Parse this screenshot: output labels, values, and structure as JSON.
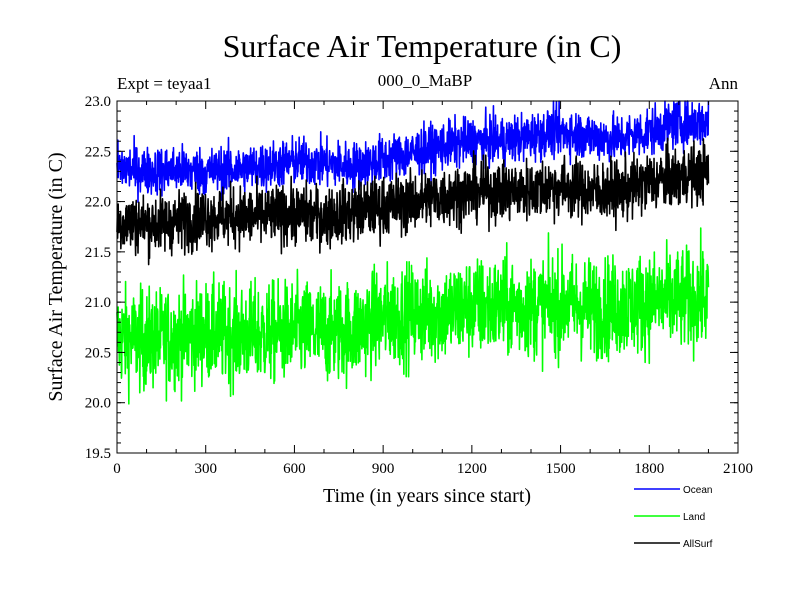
{
  "chart_data": {
    "type": "line",
    "title": "Surface Air Temperature (in C)",
    "subtitle_left": "Expt = teyaa1",
    "subtitle_center": "000_0_MaBP",
    "subtitle_right": "Ann",
    "xlabel": "Time (in years since start)",
    "ylabel": "Surface Air Temperature (in C)",
    "xlim": [
      0,
      2100
    ],
    "ylim": [
      19.5,
      23.0
    ],
    "xticks": [
      0,
      300,
      600,
      900,
      1200,
      1500,
      1800,
      2100
    ],
    "xtick_labels": [
      "0",
      "300",
      "600",
      "900",
      "1200",
      "1500",
      "1800",
      "2100"
    ],
    "yticks": [
      19.5,
      20.0,
      20.5,
      21.0,
      21.5,
      22.0,
      22.5,
      23.0
    ],
    "ytick_labels": [
      "19.5",
      "20.0",
      "20.5",
      "21.0",
      "21.5",
      "22.0",
      "22.5",
      "23.0"
    ],
    "grid": false,
    "legend_position": "below-right",
    "series": [
      {
        "name": "Ocean",
        "color": "#0000ff",
        "x": [
          0,
          100,
          200,
          300,
          400,
          500,
          600,
          700,
          800,
          900,
          1000,
          1100,
          1200,
          1300,
          1400,
          1500,
          1600,
          1700,
          1800,
          1900,
          2000
        ],
        "values": [
          22.35,
          22.3,
          22.32,
          22.3,
          22.32,
          22.35,
          22.4,
          22.38,
          22.35,
          22.42,
          22.48,
          22.55,
          22.6,
          22.6,
          22.65,
          22.7,
          22.65,
          22.62,
          22.7,
          22.78,
          22.8
        ],
        "noise_amplitude": 0.12
      },
      {
        "name": "Land",
        "color": "#00ff00",
        "x": [
          0,
          100,
          200,
          300,
          400,
          500,
          600,
          700,
          800,
          900,
          1000,
          1100,
          1200,
          1300,
          1400,
          1500,
          1600,
          1700,
          1800,
          1900,
          2000
        ],
        "values": [
          20.65,
          20.62,
          20.65,
          20.7,
          20.68,
          20.68,
          20.72,
          20.7,
          20.72,
          20.85,
          20.88,
          20.9,
          20.95,
          20.95,
          20.95,
          20.98,
          20.95,
          20.95,
          21.0,
          21.02,
          21.05
        ],
        "noise_amplitude": 0.25
      },
      {
        "name": "AllSurf",
        "color": "#000000",
        "x": [
          0,
          100,
          200,
          300,
          400,
          500,
          600,
          700,
          800,
          900,
          1000,
          1100,
          1200,
          1300,
          1400,
          1500,
          1600,
          1700,
          1800,
          1900,
          2000
        ],
        "values": [
          21.8,
          21.78,
          21.8,
          21.85,
          21.85,
          21.85,
          21.88,
          21.85,
          21.9,
          21.95,
          22.0,
          22.05,
          22.1,
          22.1,
          22.12,
          22.15,
          22.1,
          22.1,
          22.2,
          22.25,
          22.3
        ],
        "noise_amplitude": 0.15
      }
    ]
  }
}
